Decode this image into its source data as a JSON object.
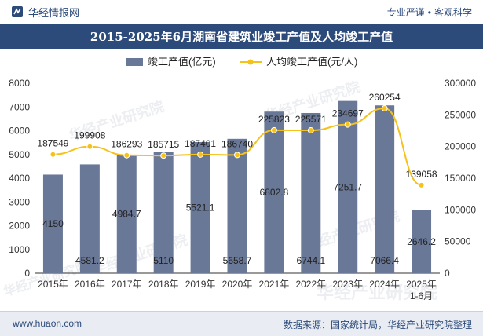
{
  "header": {
    "brand": "华经情报网",
    "tagline_left": "专业严谨",
    "tagline_right": "客观科学"
  },
  "footer": {
    "site": "www.huaon.com",
    "source": "数据来源：国家统计局，华经产业研究院整理"
  },
  "watermark": "华经产业研究院",
  "colors": {
    "bar": "#6a7898",
    "line": "#f5c21b",
    "title_bg": "#2c4a7a"
  },
  "chart_data": {
    "type": "bar",
    "title": "2015-2025年6月湖南省建筑业竣工产值及人均竣工产值",
    "categories": [
      "2015年",
      "2016年",
      "2017年",
      "2018年",
      "2019年",
      "2020年",
      "2021年",
      "2022年",
      "2023年",
      "2024年",
      "2025年\n1-6月"
    ],
    "series": [
      {
        "name": "竣工产值(亿元)",
        "type": "bar",
        "axis": "left",
        "values": [
          4150,
          4581.2,
          4984.7,
          5110,
          5521.1,
          5658.7,
          6802.8,
          6744.1,
          7251.7,
          7066.4,
          2646.2
        ],
        "labels": [
          "4150",
          "4581.2",
          "4984.7",
          "5110",
          "5521.1",
          "5658.7",
          "6802.8",
          "6744.1",
          "7251.7",
          "7066.4",
          "2646.2"
        ]
      },
      {
        "name": "人均竣工产值(元/人)",
        "type": "line",
        "axis": "right",
        "values": [
          187549,
          199908,
          186293,
          185715,
          187401,
          186740,
          225823,
          225571,
          234697,
          260254,
          139058
        ],
        "labels": [
          "187549",
          "199908",
          "186293",
          "185715",
          "187401",
          "186740",
          "225823",
          "225571",
          "234697",
          "260254",
          "139058"
        ]
      }
    ],
    "y_left": {
      "min": 0,
      "max": 8000,
      "ticks": [
        "0",
        "1000",
        "2000",
        "3000",
        "4000",
        "5000",
        "6000",
        "7000",
        "8000"
      ]
    },
    "y_right": {
      "min": 0,
      "max": 300000,
      "ticks": [
        "0",
        "50000",
        "100000",
        "150000",
        "200000",
        "250000",
        "300000"
      ]
    },
    "legend": "top-center",
    "grid": false
  }
}
